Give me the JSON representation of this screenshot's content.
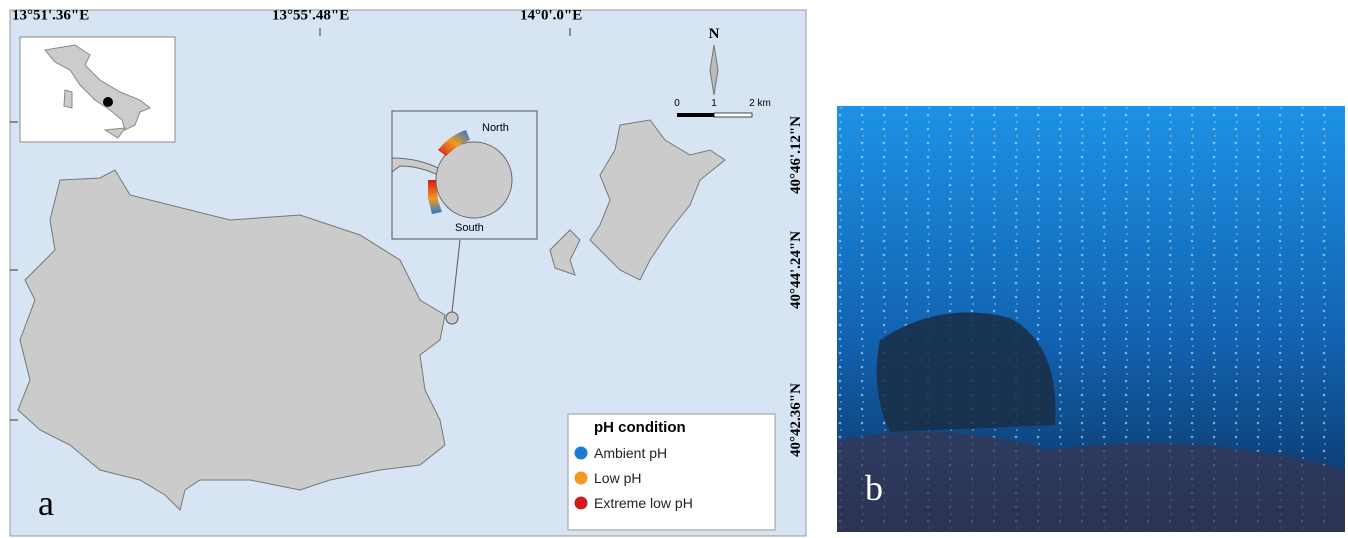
{
  "map": {
    "lon_labels": [
      "13°51'.36\"E",
      "13°55'.48\"E",
      "14°0'.0\"E"
    ],
    "lat_labels": [
      "40°46'.12\"N",
      "40°44'.24\"N",
      "40°42.36\"N"
    ],
    "north": "N",
    "scale_labels": [
      "0",
      "1",
      "2 km"
    ],
    "inset": {
      "north": "North",
      "south": "South"
    },
    "legend": {
      "title": "pH condition",
      "items": [
        {
          "label": "Ambient pH",
          "color": "#1c7ad2"
        },
        {
          "label": "Low pH",
          "color": "#f39a1e"
        },
        {
          "label": "Extreme low pH",
          "color": "#d01c1c"
        }
      ]
    },
    "panel_label": "a"
  },
  "photo": {
    "panel_label": "b"
  }
}
